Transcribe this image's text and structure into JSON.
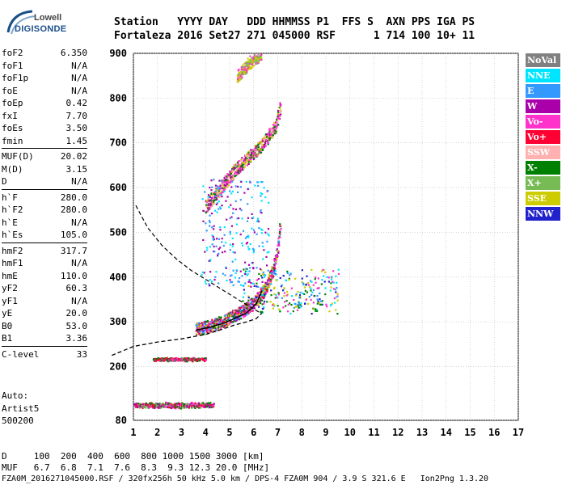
{
  "logo": {
    "brand_top": "Lowell",
    "brand_bottom": "DIGISONDE"
  },
  "header": {
    "line1": "Station   YYYY DAY   DDD HHMMSS P1  FFS S  AXN PPS IGA PS",
    "line2": "Fortaleza 2016 Set27 271 045000 RSF      1 714 100 10+ 11"
  },
  "params": [
    {
      "group": [
        {
          "label": "foF2",
          "value": "6.350"
        },
        {
          "label": "foF1",
          "value": "N/A"
        },
        {
          "label": "foF1p",
          "value": "N/A"
        },
        {
          "label": "foE",
          "value": "N/A"
        },
        {
          "label": "foEp",
          "value": "0.42"
        },
        {
          "label": "fxI",
          "value": "7.70"
        },
        {
          "label": "foEs",
          "value": "3.50"
        },
        {
          "label": "fmin",
          "value": "1.45"
        }
      ]
    },
    {
      "group": [
        {
          "label": "MUF(D)",
          "value": "20.02"
        },
        {
          "label": "M(D)",
          "value": "3.15"
        },
        {
          "label": "D",
          "value": "N/A"
        }
      ]
    },
    {
      "group": [
        {
          "label": "h`F",
          "value": "280.0"
        },
        {
          "label": "h`F2",
          "value": "280.0"
        },
        {
          "label": "h`E",
          "value": "N/A"
        },
        {
          "label": "h`Es",
          "value": "105.0"
        }
      ]
    },
    {
      "group": [
        {
          "label": "hmF2",
          "value": "317.7"
        },
        {
          "label": "hmF1",
          "value": "N/A"
        },
        {
          "label": "hmE",
          "value": "110.0"
        },
        {
          "label": "yF2",
          "value": "60.3"
        },
        {
          "label": "yF1",
          "value": "N/A"
        },
        {
          "label": "yE",
          "value": "20.0"
        },
        {
          "label": "B0",
          "value": "53.0"
        },
        {
          "label": "B1",
          "value": "3.36"
        }
      ]
    },
    {
      "group": [
        {
          "label": "C-level",
          "value": "33"
        }
      ]
    }
  ],
  "auto": {
    "line1": "Auto:",
    "line2": "Artist5",
    "line3": "500200"
  },
  "legend": [
    {
      "label": "NoVal",
      "color": "#808080"
    },
    {
      "label": "NNE",
      "color": "#00e5ff"
    },
    {
      "label": "E",
      "color": "#3399ff"
    },
    {
      "label": "W",
      "color": "#aa00aa"
    },
    {
      "label": "Vo-",
      "color": "#ff33cc"
    },
    {
      "label": "Vo+",
      "color": "#ff0033"
    },
    {
      "label": "SSW",
      "color": "#ffb0b0"
    },
    {
      "label": "X-",
      "color": "#008000"
    },
    {
      "label": "X+",
      "color": "#77bb55"
    },
    {
      "label": "SSE",
      "color": "#cccc00"
    },
    {
      "label": "NNW",
      "color": "#2222cc"
    }
  ],
  "bottom": {
    "dist_row": "D     100  200  400  600  800 1000 1500 3000 [km]",
    "muf_row": "MUF   6.7  6.8  7.1  7.6  8.3  9.3 12.3 20.0 [MHz]",
    "file_row": "FZA0M_2016271045000.RSF / 320fx256h 50 kHz 5.0 km / DPS-4 FZA0M 904 / 3.9 S 321.6 E   Ion2Png 1.3.20"
  },
  "chart_data": {
    "type": "scatter",
    "title": "",
    "xlabel": "",
    "ylabel": "",
    "xlim": [
      1,
      17
    ],
    "ylim": [
      80,
      900
    ],
    "x_ticks": [
      1,
      2,
      3,
      4,
      5,
      6,
      7,
      8,
      9,
      10,
      11,
      12,
      13,
      14,
      15,
      16,
      17
    ],
    "y_ticks": [
      80,
      200,
      300,
      400,
      500,
      600,
      700,
      800,
      900
    ],
    "grid": true,
    "legend_placement": "right",
    "traces": [
      {
        "name": "Es trace",
        "mode": "h",
        "y": [
          110,
          120
        ],
        "x_range": [
          1.0,
          4.3
        ],
        "colors": [
          "#ff0033",
          "#aa00aa",
          "#ff33cc",
          "#008000",
          "#77bb55"
        ]
      },
      {
        "name": "Es 2nd hop",
        "mode": "h",
        "y": [
          215,
          220
        ],
        "x_range": [
          1.8,
          4.0
        ],
        "colors": [
          "#ff0033",
          "#ff33cc",
          "#008000"
        ]
      },
      {
        "name": "F trace",
        "mode": "curve",
        "points": [
          [
            3.6,
            285
          ],
          [
            4.2,
            292
          ],
          [
            4.8,
            305
          ],
          [
            5.3,
            318
          ],
          [
            5.8,
            335
          ],
          [
            6.2,
            355
          ],
          [
            6.5,
            380
          ],
          [
            6.8,
            420
          ],
          [
            7.0,
            470
          ],
          [
            7.1,
            520
          ]
        ],
        "colors": [
          "#ff33cc",
          "#008000",
          "#ff0033",
          "#aa00aa",
          "#cccc00",
          "#3399ff"
        ]
      },
      {
        "name": "F 2nd hop",
        "mode": "curve",
        "points": [
          [
            4.0,
            560
          ],
          [
            4.6,
            600
          ],
          [
            5.2,
            640
          ],
          [
            5.8,
            670
          ],
          [
            6.4,
            700
          ],
          [
            6.9,
            740
          ],
          [
            7.1,
            780
          ]
        ],
        "colors": [
          "#cccc00",
          "#ffb0b0",
          "#ff33cc",
          "#aa00aa",
          "#008000"
        ]
      },
      {
        "name": "F 3rd hop",
        "mode": "curve",
        "points": [
          [
            5.3,
            850
          ],
          [
            5.8,
            880
          ],
          [
            6.3,
            900
          ]
        ],
        "colors": [
          "#cccc00",
          "#ff33cc",
          "#77bb55"
        ]
      },
      {
        "name": "Spread F",
        "mode": "spread",
        "x_range": [
          5.5,
          9.5
        ],
        "y_range": [
          320,
          420
        ],
        "colors": [
          "#3399ff",
          "#cccc00",
          "#2222cc",
          "#ff33cc",
          "#008000",
          "#00e5ff"
        ]
      },
      {
        "name": "Diffuse echoes",
        "mode": "spread",
        "x_range": [
          3.8,
          6.6
        ],
        "y_range": [
          380,
          620
        ],
        "colors": [
          "#3399ff",
          "#00e5ff",
          "#aa00aa"
        ]
      }
    ],
    "profile": {
      "name": "Electron density profile",
      "points": [
        [
          0.1,
          225
        ],
        [
          1.0,
          245
        ],
        [
          2.0,
          255
        ],
        [
          3.0,
          262
        ],
        [
          4.0,
          272
        ],
        [
          4.6,
          282
        ],
        [
          5.2,
          293
        ],
        [
          5.7,
          300
        ],
        [
          6.1,
          307
        ],
        [
          6.3,
          317.7
        ]
      ]
    },
    "profile_extension": {
      "name": "Profile extrapolation",
      "points": [
        [
          1.1,
          560
        ],
        [
          1.6,
          510
        ],
        [
          2.2,
          470
        ],
        [
          2.8,
          440
        ],
        [
          3.4,
          415
        ],
        [
          4.0,
          395
        ],
        [
          4.6,
          375
        ],
        [
          5.2,
          355
        ],
        [
          5.8,
          335
        ],
        [
          6.35,
          317.7
        ]
      ]
    },
    "true_height_trace": {
      "name": "Fitted virtual height",
      "points": [
        [
          3.6,
          282
        ],
        [
          4.2,
          288
        ],
        [
          4.8,
          298
        ],
        [
          5.3,
          310
        ],
        [
          5.7,
          320
        ],
        [
          6.1,
          340
        ],
        [
          6.35,
          370
        ]
      ]
    }
  }
}
